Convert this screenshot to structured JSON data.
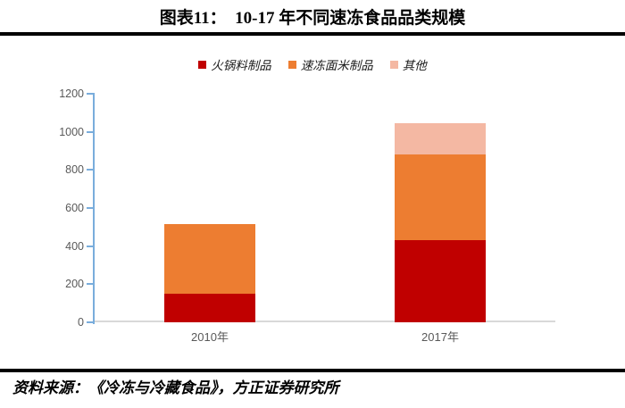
{
  "page": {
    "title": "图表11：  10-17 年不同速冻食品品类规模",
    "source": "资料来源：《冷冻与冷藏食品》，方正证券研究所"
  },
  "legend": {
    "items": [
      {
        "label": "火锅料制品",
        "color": "#C00000"
      },
      {
        "label": "速冻面米制品",
        "color": "#ED7D31"
      },
      {
        "label": "其他",
        "color": "#F4B8A3"
      }
    ]
  },
  "chart_data": {
    "type": "bar",
    "stacked": true,
    "title": "10-17年不同速冻食品品类规模",
    "categories": [
      "2010年",
      "2017年"
    ],
    "series": [
      {
        "name": "火锅料制品",
        "color": "#C00000",
        "values": [
          150,
          430
        ]
      },
      {
        "name": "速冻面米制品",
        "color": "#ED7D31",
        "values": [
          365,
          450
        ]
      },
      {
        "name": "其他",
        "color": "#F4B8A3",
        "values": [
          0,
          165
        ]
      }
    ],
    "totals": [
      515,
      1045
    ],
    "ylim": [
      0,
      1200
    ],
    "yticks": [
      0,
      200,
      400,
      600,
      800,
      1000,
      1200
    ],
    "xlabel": "",
    "ylabel": "",
    "grid": false,
    "legend_position": "top",
    "colors": {
      "y_axis": "#79ADDC",
      "x_axis": "#D9D9D9",
      "tick_label": "#595959"
    }
  }
}
